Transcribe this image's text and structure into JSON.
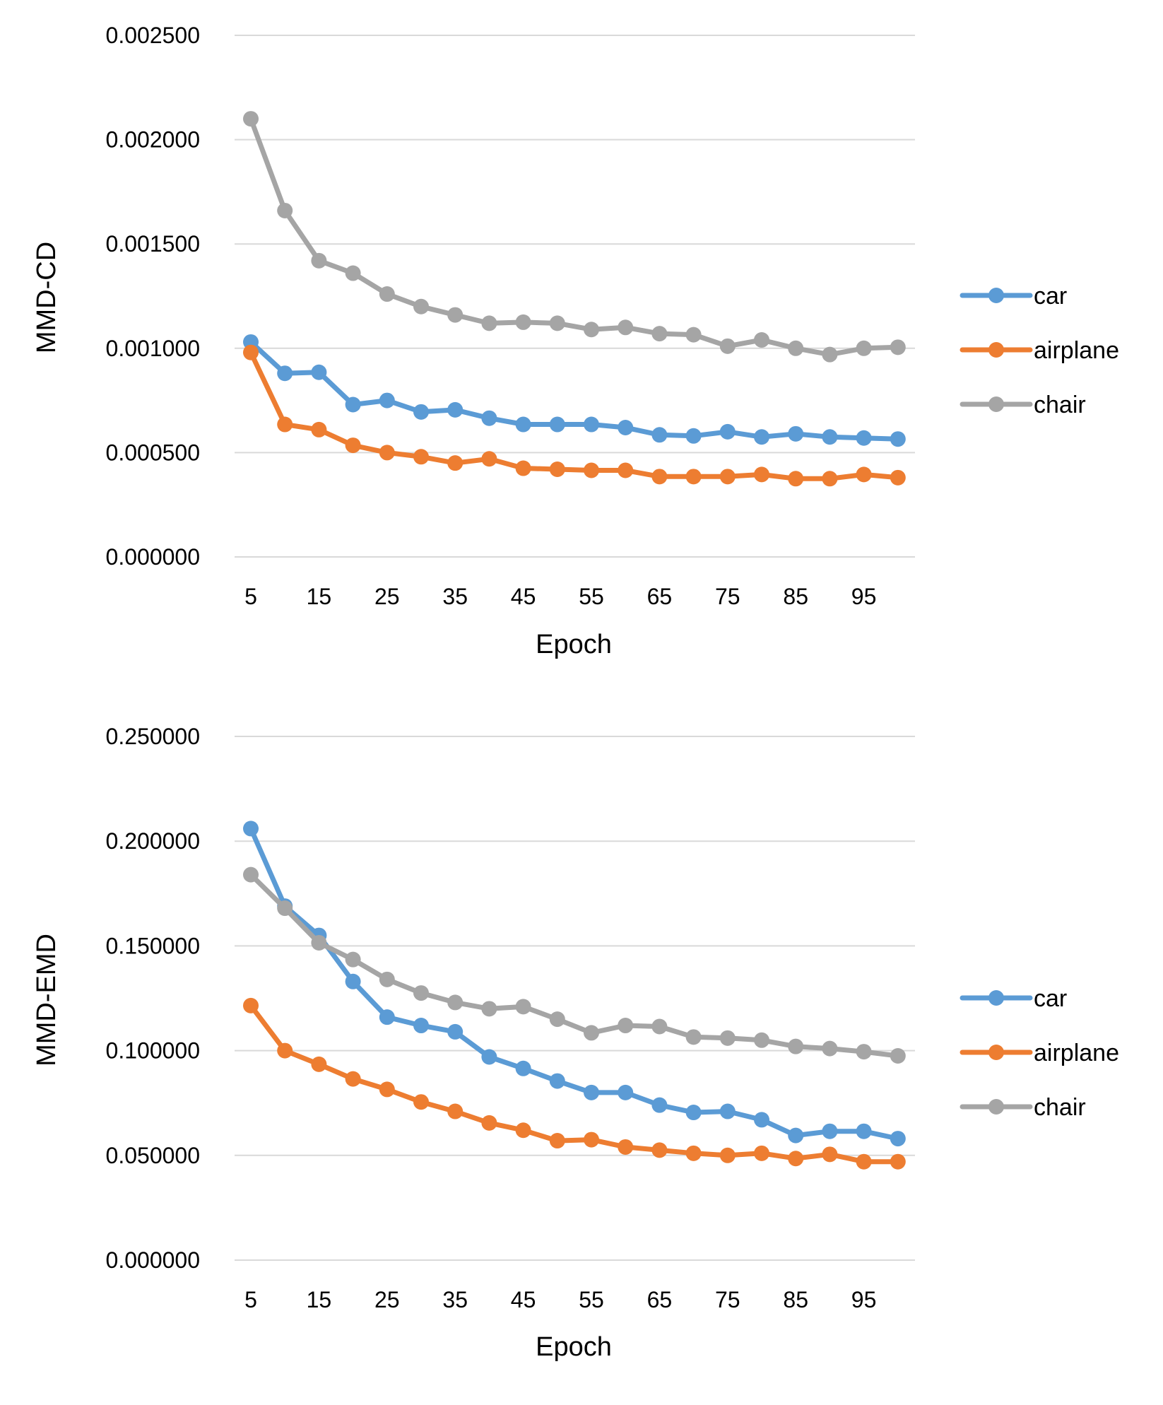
{
  "chart_data": [
    {
      "type": "line",
      "title": "",
      "xlabel": "Epoch",
      "ylabel": "MMD-CD",
      "x": [
        5,
        10,
        15,
        20,
        25,
        30,
        35,
        40,
        45,
        50,
        55,
        60,
        65,
        70,
        75,
        80,
        85,
        90,
        95,
        100
      ],
      "x_tick_labels": [
        "5",
        "15",
        "25",
        "35",
        "45",
        "55",
        "65",
        "75",
        "85",
        "95"
      ],
      "y_tick_labels": [
        "0.000000",
        "0.000500",
        "0.001000",
        "0.001500",
        "0.002000",
        "0.002500"
      ],
      "ylim": [
        0,
        0.0025
      ],
      "grid": "horizontal",
      "legend_position": "right",
      "series": [
        {
          "name": "car",
          "color": "#5b9bd5",
          "values": [
            0.00103,
            0.00088,
            0.000885,
            0.00073,
            0.00075,
            0.000695,
            0.000705,
            0.000665,
            0.000635,
            0.000635,
            0.000635,
            0.00062,
            0.000585,
            0.00058,
            0.0006,
            0.000575,
            0.00059,
            0.000575,
            0.00057,
            0.000565
          ]
        },
        {
          "name": "airplane",
          "color": "#ed7d31",
          "values": [
            0.00098,
            0.000635,
            0.00061,
            0.000535,
            0.0005,
            0.00048,
            0.00045,
            0.00047,
            0.000425,
            0.00042,
            0.000415,
            0.000415,
            0.000385,
            0.000385,
            0.000385,
            0.000395,
            0.000375,
            0.000375,
            0.000395,
            0.00038
          ]
        },
        {
          "name": "chair",
          "color": "#a5a5a5",
          "values": [
            0.0021,
            0.00166,
            0.00142,
            0.00136,
            0.00126,
            0.0012,
            0.00116,
            0.00112,
            0.001125,
            0.00112,
            0.00109,
            0.0011,
            0.00107,
            0.001065,
            0.00101,
            0.00104,
            0.001,
            0.00097,
            0.001,
            0.001005
          ]
        }
      ]
    },
    {
      "type": "line",
      "title": "",
      "xlabel": "Epoch",
      "ylabel": "MMD-EMD",
      "x": [
        5,
        10,
        15,
        20,
        25,
        30,
        35,
        40,
        45,
        50,
        55,
        60,
        65,
        70,
        75,
        80,
        85,
        90,
        95,
        100
      ],
      "x_tick_labels": [
        "5",
        "15",
        "25",
        "35",
        "45",
        "55",
        "65",
        "75",
        "85",
        "95"
      ],
      "y_tick_labels": [
        "0.000000",
        "0.050000",
        "0.100000",
        "0.150000",
        "0.200000",
        "0.250000"
      ],
      "ylim": [
        0,
        0.25
      ],
      "grid": "horizontal",
      "legend_position": "right",
      "series": [
        {
          "name": "car",
          "color": "#5b9bd5",
          "values": [
            0.206,
            0.169,
            0.155,
            0.133,
            0.116,
            0.112,
            0.109,
            0.097,
            0.0915,
            0.0855,
            0.08,
            0.08,
            0.074,
            0.0705,
            0.071,
            0.067,
            0.0595,
            0.0615,
            0.0615,
            0.058
          ]
        },
        {
          "name": "airplane",
          "color": "#ed7d31",
          "values": [
            0.1215,
            0.1,
            0.0935,
            0.0865,
            0.0815,
            0.0755,
            0.071,
            0.0655,
            0.062,
            0.057,
            0.0575,
            0.054,
            0.0525,
            0.051,
            0.05,
            0.051,
            0.0485,
            0.0505,
            0.047,
            0.047
          ]
        },
        {
          "name": "chair",
          "color": "#a5a5a5",
          "values": [
            0.184,
            0.168,
            0.1515,
            0.1435,
            0.134,
            0.1275,
            0.123,
            0.12,
            0.121,
            0.115,
            0.1085,
            0.112,
            0.1115,
            0.1065,
            0.106,
            0.105,
            0.102,
            0.101,
            0.0995,
            0.0975
          ]
        }
      ]
    }
  ]
}
